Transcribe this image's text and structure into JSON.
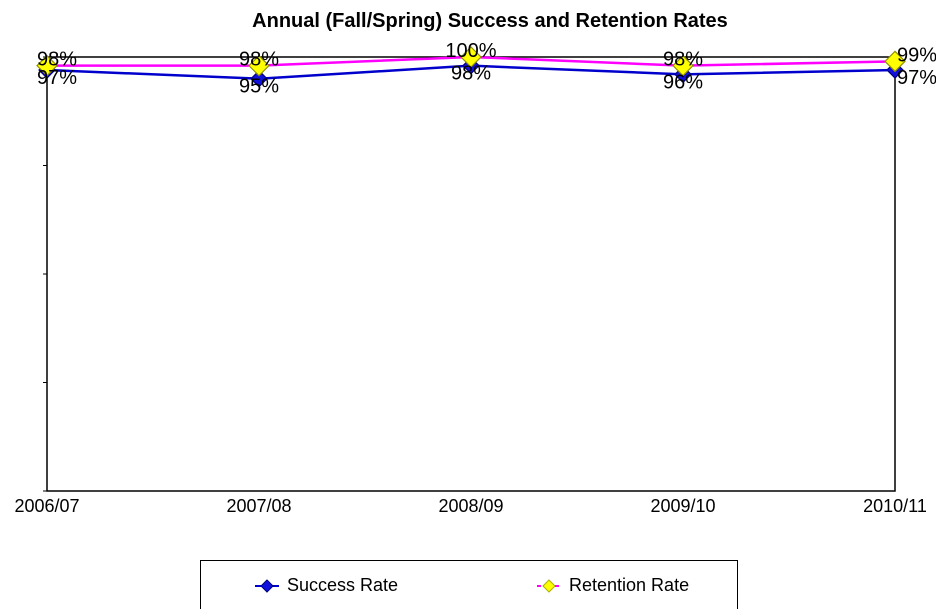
{
  "chart_data": {
    "type": "line",
    "title": "Annual (Fall/Spring) Success and Retention Rates",
    "categories": [
      "2006/07",
      "2007/08",
      "2008/09",
      "2009/10",
      "2010/11"
    ],
    "ylim": [
      0,
      100
    ],
    "grid": false,
    "legend_position": "bottom",
    "series": [
      {
        "name": "Success Rate",
        "color": "#0000CC",
        "marker_color": "#1010DD",
        "values": [
          97,
          95,
          98,
          96,
          97
        ],
        "labels": [
          "97%",
          "95%",
          "98%",
          "96%",
          "97%"
        ]
      },
      {
        "name": "Retention Rate",
        "color": "#FF00FF",
        "marker_color": "#FFFF00",
        "values": [
          98,
          98,
          100,
          98,
          99
        ],
        "labels": [
          "98%",
          "98%",
          "100%",
          "98%",
          "99%"
        ]
      }
    ]
  }
}
